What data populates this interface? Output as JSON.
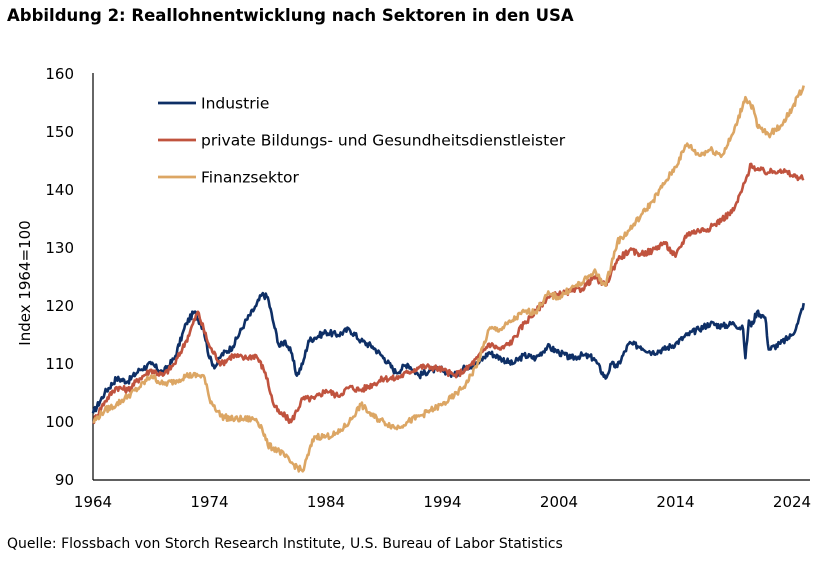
{
  "title": "Abbildung 2: Reallohnentwicklung nach Sektoren in den USA",
  "source": "Quelle: Flossbach von Storch Research Institute, U.S. Bureau of Labor Statistics",
  "chart_data": {
    "type": "line",
    "title": "Abbildung 2: Reallohnentwicklung nach Sektoren in den USA",
    "xlabel": "",
    "ylabel": "Index 1964=100",
    "xlim": [
      1964,
      2025.2
    ],
    "ylim": [
      90,
      160
    ],
    "xticks": [
      1964,
      1974,
      1984,
      1994,
      2004,
      2014,
      2024
    ],
    "yticks": [
      90,
      100,
      110,
      120,
      130,
      140,
      150,
      160
    ],
    "grid": false,
    "legend_position": "top-left",
    "series": [
      {
        "name": "Industrie",
        "color": "#0e2f66",
        "x": [
          1964,
          1965,
          1966,
          1967,
          1968,
          1969,
          1970,
          1971,
          1972,
          1972.7,
          1973.5,
          1974,
          1974.5,
          1975,
          1976,
          1977,
          1978,
          1978.5,
          1979,
          1979.5,
          1980,
          1980.5,
          1981,
          1981.5,
          1982,
          1982.5,
          1983,
          1984,
          1985,
          1986,
          1987,
          1988,
          1989,
          1990,
          1991,
          1992,
          1993,
          1994,
          1995,
          1996,
          1997,
          1998,
          1999,
          2000,
          2001,
          2002,
          2003,
          2004,
          2005,
          2006,
          2007,
          2008,
          2008.5,
          2009,
          2010,
          2011,
          2012,
          2013,
          2014,
          2015,
          2016,
          2017,
          2018,
          2019,
          2019.8,
          2020,
          2020.3,
          2020.5,
          2021,
          2021.7,
          2022,
          2023,
          2024,
          2024.5,
          2025
        ],
        "values": [
          101.5,
          105,
          107.5,
          107,
          109,
          110,
          108.5,
          111,
          117,
          119,
          116,
          111,
          109.5,
          111.5,
          113,
          117,
          120,
          122,
          121.5,
          117,
          113,
          114,
          112,
          108,
          110,
          114,
          114.5,
          115.5,
          115,
          116,
          114,
          113,
          111,
          108.5,
          110,
          108,
          109,
          109,
          108,
          109.5,
          110,
          112,
          111,
          110,
          111.5,
          111,
          113,
          112,
          111,
          111.5,
          111,
          107.5,
          110,
          109.5,
          113.5,
          113,
          112,
          112.5,
          113.5,
          115,
          116,
          117,
          116.5,
          117,
          116,
          111,
          117.5,
          116.5,
          119,
          118,
          112.5,
          113.5,
          115,
          117,
          120.5
        ]
      },
      {
        "name": "private Bildungs- und Gesundheitsdienstleister",
        "color": "#c0533e",
        "x": [
          1964,
          1965,
          1966,
          1967,
          1968,
          1969,
          1970,
          1971,
          1972,
          1973,
          1974,
          1975,
          1976,
          1977,
          1978,
          1978.8,
          1979.5,
          1980,
          1980.5,
          1981,
          1982,
          1983,
          1984,
          1985,
          1986,
          1987,
          1988,
          1989,
          1990,
          1991,
          1992,
          1993,
          1994,
          1995,
          1996,
          1997,
          1998,
          1999,
          2000,
          2001,
          2002,
          2003,
          2004,
          2005,
          2006,
          2007,
          2008,
          2009,
          2010,
          2011,
          2012,
          2013,
          2014,
          2015,
          2016,
          2017,
          2018,
          2019,
          2020,
          2020.5,
          2021,
          2022,
          2023,
          2024,
          2025
        ],
        "values": [
          100,
          103.5,
          106,
          105.5,
          107.5,
          109,
          108,
          110,
          114,
          119,
          113,
          110,
          111.5,
          111,
          111.5,
          108.5,
          103,
          101.5,
          101,
          100,
          104,
          104,
          105.5,
          104.5,
          106,
          105.5,
          106.5,
          107.5,
          107.5,
          108.5,
          109.5,
          109.5,
          109,
          108,
          109,
          111,
          113.5,
          112.5,
          114,
          117,
          119,
          121.5,
          122,
          122.5,
          123,
          125,
          123.5,
          128,
          129.5,
          129,
          129.5,
          131,
          128.5,
          132.5,
          133,
          133.5,
          135,
          136.5,
          141.5,
          144.5,
          143.5,
          143,
          143.5,
          142.5,
          142
        ]
      },
      {
        "name": "Finanzsektor",
        "color": "#dca664",
        "x": [
          1964,
          1965,
          1966,
          1967,
          1968,
          1969,
          1970,
          1971,
          1972,
          1973,
          1973.5,
          1974,
          1975,
          1976,
          1977,
          1978,
          1978.5,
          1979,
          1980,
          1981,
          1982,
          1983,
          1984,
          1985,
          1986,
          1987,
          1988,
          1989,
          1990,
          1991,
          1992,
          1993,
          1994,
          1995,
          1996,
          1997,
          1998,
          1999,
          2000,
          2001,
          2002,
          2003,
          2004,
          2005,
          2006,
          2007,
          2008,
          2009,
          2010,
          2011,
          2012,
          2013,
          2014,
          2015,
          2016,
          2017,
          2018,
          2019,
          2020,
          2020.7,
          2021,
          2022,
          2023,
          2024,
          2025
        ],
        "values": [
          100,
          102,
          103,
          104.5,
          106,
          108,
          106.5,
          107,
          108,
          108,
          108,
          104,
          101,
          100.5,
          100.5,
          100.5,
          99,
          96,
          95,
          93,
          91.5,
          97.5,
          97.5,
          98,
          100,
          103,
          101,
          100,
          99,
          100,
          101,
          102,
          103,
          104.5,
          106.5,
          110,
          116,
          116,
          117.5,
          119,
          119,
          122,
          121.5,
          123,
          124,
          126,
          123.5,
          131,
          133,
          135.5,
          138,
          141,
          144,
          148,
          146,
          147,
          146,
          150,
          156,
          154,
          151,
          149.5,
          151,
          154,
          158
        ]
      }
    ]
  }
}
